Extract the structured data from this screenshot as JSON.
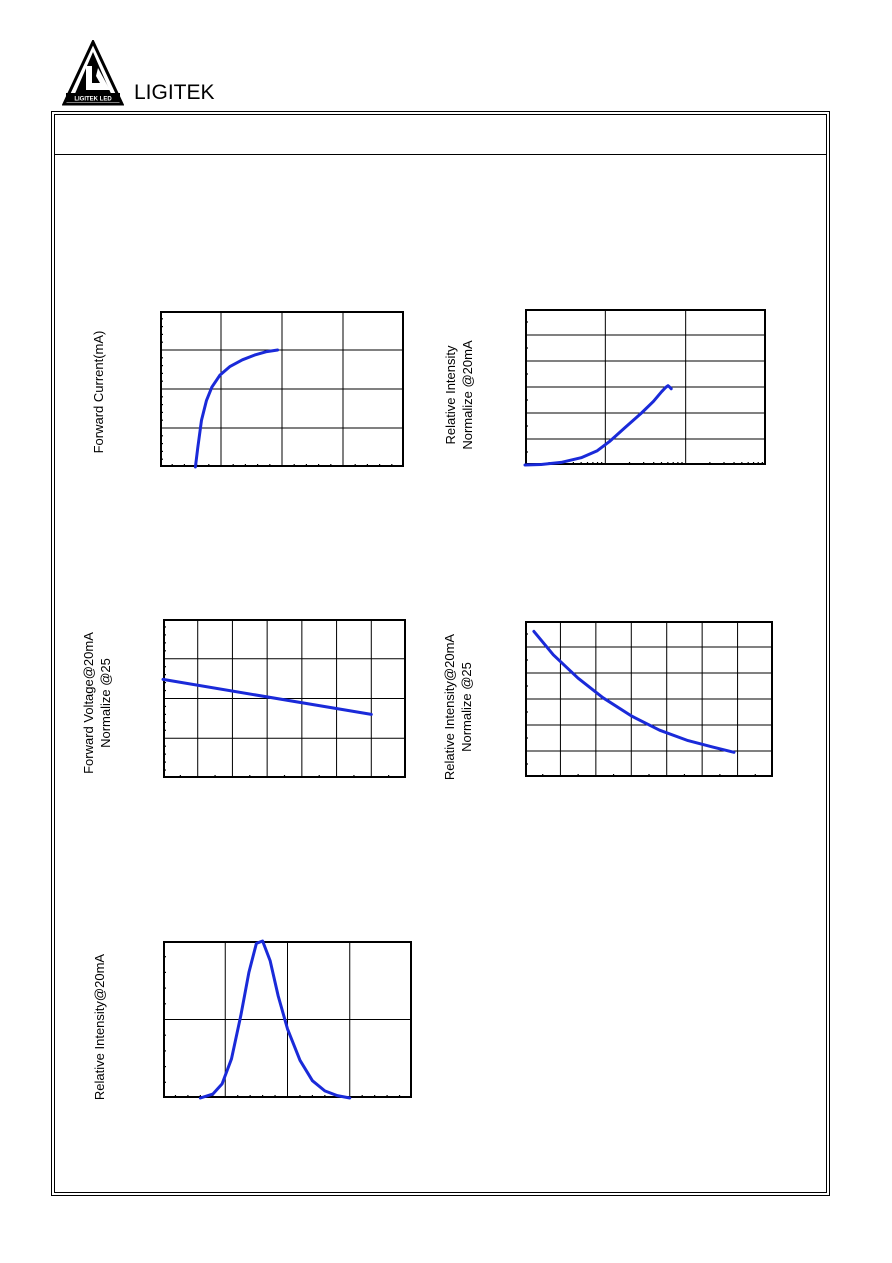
{
  "header": {
    "brand": "LIGITEK",
    "logo_text": "LIGITEK LED"
  },
  "colors": {
    "curve": "#1a2ad9",
    "frame": "#000000",
    "grid": "#000000"
  },
  "charts": {
    "c1": {
      "ylabel_lines": [
        "Forward Current(mA)"
      ]
    },
    "c2": {
      "ylabel_lines": [
        "Relative Intensity",
        "Normalize @20mA"
      ]
    },
    "c3": {
      "ylabel_lines": [
        "Forward Voltage@20mA",
        "Normalize @25"
      ]
    },
    "c4": {
      "ylabel_lines": [
        "Relative Intensity@20mA",
        "Normalize @25"
      ]
    },
    "c5": {
      "ylabel_lines": [
        "Relative Intensity@20mA"
      ]
    }
  },
  "chart_data": [
    {
      "type": "line",
      "id": "c1",
      "ylabel": "Forward Current(mA)",
      "xlim": [
        0,
        4
      ],
      "ylim": [
        0,
        4
      ],
      "points": [
        [
          0.58,
          0
        ],
        [
          0.62,
          0.5
        ],
        [
          0.68,
          1.2
        ],
        [
          0.76,
          1.7
        ],
        [
          0.85,
          2.05
        ],
        [
          0.98,
          2.35
        ],
        [
          1.15,
          2.58
        ],
        [
          1.35,
          2.75
        ],
        [
          1.55,
          2.87
        ],
        [
          1.75,
          2.96
        ],
        [
          1.93,
          3.0
        ]
      ]
    },
    {
      "type": "line",
      "id": "c2",
      "ylabel": "Relative Intensity Normalize @20mA",
      "xlim": [
        0,
        3
      ],
      "ylim": [
        0,
        6
      ],
      "x_scale": "log",
      "points": [
        [
          0.0,
          0.0
        ],
        [
          0.2,
          0.02
        ],
        [
          0.45,
          0.1
        ],
        [
          0.7,
          0.28
        ],
        [
          0.9,
          0.55
        ],
        [
          1.05,
          0.9
        ],
        [
          1.25,
          1.45
        ],
        [
          1.45,
          2.0
        ],
        [
          1.6,
          2.45
        ],
        [
          1.7,
          2.82
        ],
        [
          1.75,
          2.98
        ],
        [
          1.78,
          3.05
        ],
        [
          1.8,
          3.0
        ],
        [
          1.82,
          2.93
        ]
      ]
    },
    {
      "type": "line",
      "id": "c3",
      "ylabel": "Forward Voltage@20mA Normalize @25",
      "xlim": [
        0,
        7
      ],
      "ylim": [
        0,
        4
      ],
      "points": [
        [
          0,
          2.48
        ],
        [
          6,
          1.6
        ]
      ]
    },
    {
      "type": "line",
      "id": "c4",
      "ylabel": "Relative Intensity@20mA Normalize @25",
      "xlim": [
        0,
        7
      ],
      "ylim": [
        0,
        6
      ],
      "points": [
        [
          0.25,
          5.6
        ],
        [
          0.8,
          4.7
        ],
        [
          1.5,
          3.8
        ],
        [
          2.2,
          3.05
        ],
        [
          3.0,
          2.35
        ],
        [
          3.8,
          1.8
        ],
        [
          4.6,
          1.4
        ],
        [
          5.3,
          1.15
        ],
        [
          5.9,
          0.95
        ]
      ]
    },
    {
      "type": "line",
      "id": "c5",
      "ylabel": "Relative Intensity@20mA",
      "xlim": [
        0,
        4
      ],
      "ylim": [
        0,
        2
      ],
      "points": [
        [
          0.6,
          0
        ],
        [
          0.8,
          0.05
        ],
        [
          0.95,
          0.18
        ],
        [
          1.1,
          0.5
        ],
        [
          1.25,
          1.05
        ],
        [
          1.38,
          1.6
        ],
        [
          1.5,
          1.97
        ],
        [
          1.6,
          2.0
        ],
        [
          1.72,
          1.75
        ],
        [
          1.85,
          1.3
        ],
        [
          2.0,
          0.88
        ],
        [
          2.2,
          0.48
        ],
        [
          2.4,
          0.22
        ],
        [
          2.6,
          0.09
        ],
        [
          2.8,
          0.03
        ],
        [
          3.0,
          0.0
        ]
      ]
    }
  ]
}
